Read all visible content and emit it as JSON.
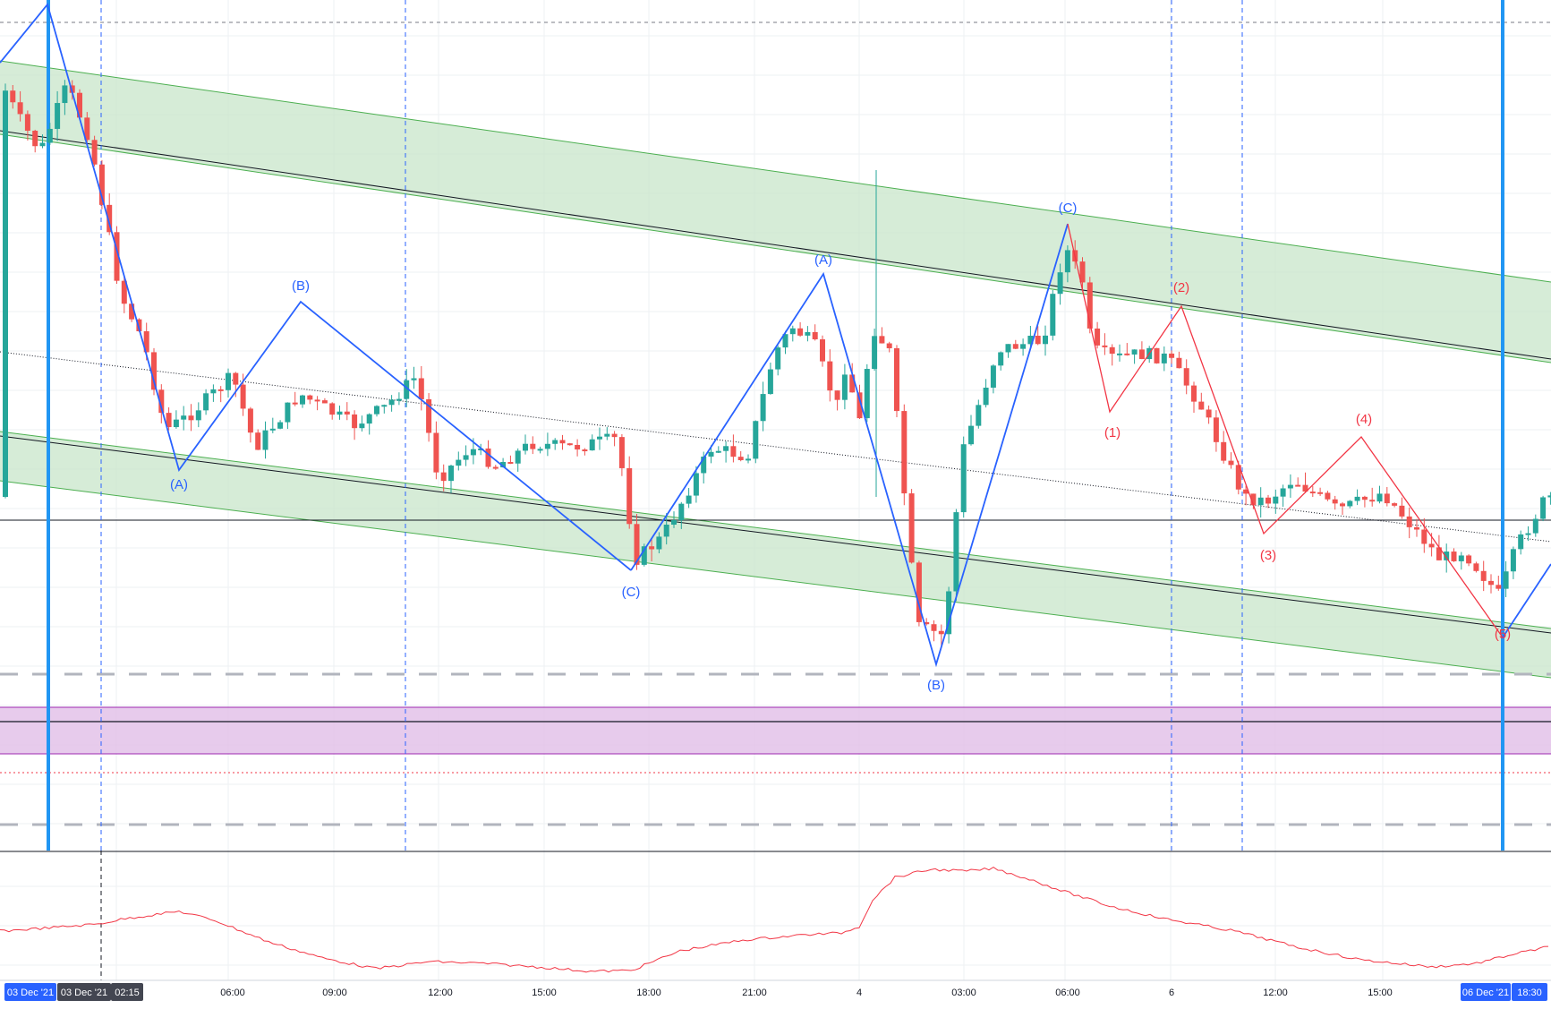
{
  "chart_data": {
    "type": "candlestick",
    "x_axis": {
      "ticks": [
        "06:00",
        "09:00",
        "12:00",
        "15:00",
        "18:00",
        "21:00",
        "4",
        "03:00",
        "06:00",
        "6",
        "12:00",
        "15:00"
      ],
      "badges": [
        "03 Dec '21",
        "03 Dec '21",
        "02:15",
        "06 Dec '21",
        "18:30"
      ]
    },
    "colors": {
      "up": "#26a69a",
      "down": "#ef5350",
      "channel_fill": "#c8e6c9",
      "channel_line": "#4caf50",
      "zone_fill": "#e1bee7",
      "zone_line": "#9c27b0",
      "wave_corrective": "#2962ff",
      "wave_impulse": "#f23645",
      "vertical_marker": "#2196f3",
      "indicator": "#f23645"
    },
    "corrective_waves": [
      {
        "labels": [
          "(A)",
          "(B)",
          "(C)"
        ]
      },
      {
        "labels": [
          "(A)",
          "(B)",
          "(C)"
        ]
      }
    ],
    "impulse_wave": {
      "labels": [
        "(1)",
        "(2)",
        "(3)",
        "(4)",
        "(5)"
      ]
    },
    "grid": true
  }
}
